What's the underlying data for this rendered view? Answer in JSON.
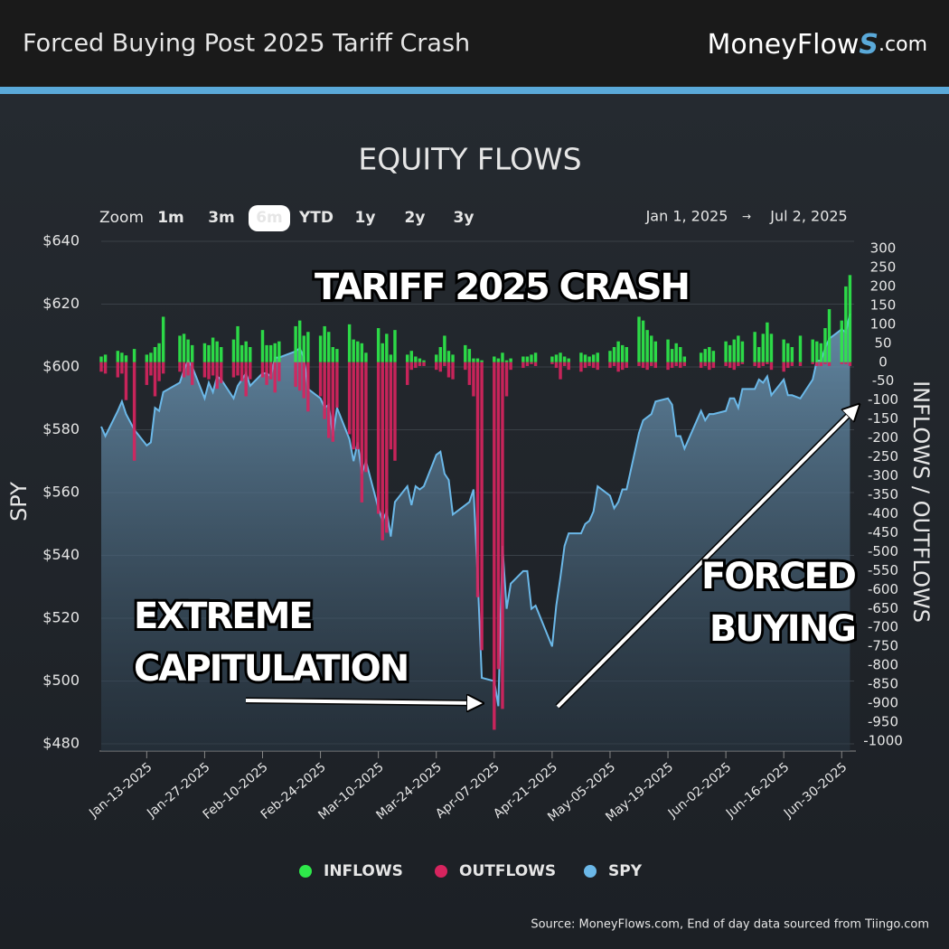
{
  "header": {
    "title": "Forced Buying Post 2025 Tariff Crash",
    "logo": [
      "MoneyFlow",
      "S",
      ".com"
    ]
  },
  "zoom": {
    "label": "Zoom",
    "buttons": [
      "1m",
      "3m",
      "6m",
      "YTD",
      "1y",
      "2y",
      "3y"
    ],
    "selected": 2
  },
  "range": {
    "from": "Jan 1, 2025",
    "to": "Jul 2, 2025"
  },
  "source": "Source: MoneyFlows.com, End of day data sourced from Tiingo.com",
  "chart_data": {
    "type": "bar",
    "title": "EQUITY FLOWS",
    "y_label": "SPY",
    "y2_label": "INFLOWS / OUTFLOWS",
    "annotations": [
      {
        "lines": [
          "TARIFF 2025 CRASH"
        ]
      },
      {
        "lines": [
          "EXTREME",
          "CAPITULATION"
        ]
      },
      {
        "lines": [
          "FORCED",
          "BUYING"
        ]
      }
    ],
    "x": [
      "2025-01-02",
      "2025-01-03",
      "2025-01-06",
      "2025-01-07",
      "2025-01-08",
      "2025-01-10",
      "2025-01-13",
      "2025-01-14",
      "2025-01-15",
      "2025-01-16",
      "2025-01-17",
      "2025-01-21",
      "2025-01-22",
      "2025-01-23",
      "2025-01-24",
      "2025-01-27",
      "2025-01-28",
      "2025-01-29",
      "2025-01-30",
      "2025-01-31",
      "2025-02-03",
      "2025-02-04",
      "2025-02-05",
      "2025-02-06",
      "2025-02-07",
      "2025-02-10",
      "2025-02-11",
      "2025-02-12",
      "2025-02-13",
      "2025-02-14",
      "2025-02-18",
      "2025-02-19",
      "2025-02-20",
      "2025-02-21",
      "2025-02-24",
      "2025-02-25",
      "2025-02-26",
      "2025-02-27",
      "2025-02-28",
      "2025-03-03",
      "2025-03-04",
      "2025-03-05",
      "2025-03-06",
      "2025-03-07",
      "2025-03-10",
      "2025-03-11",
      "2025-03-12",
      "2025-03-13",
      "2025-03-14",
      "2025-03-17",
      "2025-03-18",
      "2025-03-19",
      "2025-03-20",
      "2025-03-21",
      "2025-03-24",
      "2025-03-25",
      "2025-03-26",
      "2025-03-27",
      "2025-03-28",
      "2025-03-31",
      "2025-04-01",
      "2025-04-02",
      "2025-04-03",
      "2025-04-04",
      "2025-04-07",
      "2025-04-08",
      "2025-04-09",
      "2025-04-10",
      "2025-04-11",
      "2025-04-14",
      "2025-04-15",
      "2025-04-16",
      "2025-04-17",
      "2025-04-21",
      "2025-04-22",
      "2025-04-23",
      "2025-04-24",
      "2025-04-25",
      "2025-04-28",
      "2025-04-29",
      "2025-04-30",
      "2025-05-01",
      "2025-05-02",
      "2025-05-05",
      "2025-05-06",
      "2025-05-07",
      "2025-05-08",
      "2025-05-09",
      "2025-05-12",
      "2025-05-13",
      "2025-05-14",
      "2025-05-15",
      "2025-05-16",
      "2025-05-19",
      "2025-05-20",
      "2025-05-21",
      "2025-05-22",
      "2025-05-23",
      "2025-05-27",
      "2025-05-28",
      "2025-05-29",
      "2025-05-30",
      "2025-06-02",
      "2025-06-03",
      "2025-06-04",
      "2025-06-05",
      "2025-06-06",
      "2025-06-09",
      "2025-06-10",
      "2025-06-11",
      "2025-06-12",
      "2025-06-13",
      "2025-06-16",
      "2025-06-17",
      "2025-06-18",
      "2025-06-20",
      "2025-06-23",
      "2025-06-24",
      "2025-06-25",
      "2025-06-26",
      "2025-06-27",
      "2025-06-30",
      "2025-07-01",
      "2025-07-02"
    ],
    "series": [
      {
        "name": "INFLOWS",
        "type": "bar",
        "axis": "y2",
        "color": "#2ee84a",
        "values": [
          15,
          20,
          30,
          25,
          18,
          35,
          20,
          25,
          40,
          50,
          120,
          70,
          75,
          60,
          45,
          50,
          45,
          65,
          55,
          40,
          60,
          95,
          45,
          55,
          40,
          85,
          45,
          45,
          50,
          55,
          95,
          110,
          70,
          80,
          70,
          95,
          80,
          40,
          35,
          100,
          60,
          55,
          50,
          25,
          90,
          50,
          75,
          20,
          85,
          20,
          30,
          15,
          10,
          5,
          20,
          40,
          70,
          30,
          20,
          45,
          35,
          10,
          10,
          5,
          15,
          10,
          25,
          5,
          10,
          15,
          15,
          20,
          25,
          15,
          20,
          25,
          15,
          10,
          25,
          20,
          15,
          20,
          25,
          30,
          40,
          55,
          45,
          40,
          120,
          110,
          85,
          70,
          55,
          60,
          35,
          50,
          40,
          15,
          25,
          35,
          40,
          30,
          55,
          45,
          60,
          70,
          55,
          80,
          40,
          75,
          105,
          75,
          60,
          50,
          40,
          70,
          60,
          55,
          50,
          90,
          140,
          110,
          200,
          230
        ]
      },
      {
        "name": "OUTFLOWS",
        "type": "bar",
        "axis": "y2",
        "color": "#d6245e",
        "values": [
          -25,
          -30,
          -40,
          -30,
          -100,
          -260,
          -60,
          -35,
          -90,
          -50,
          -30,
          -25,
          -40,
          -35,
          -60,
          -40,
          -45,
          -35,
          -70,
          -55,
          -40,
          -35,
          -50,
          -90,
          -45,
          -40,
          -60,
          -45,
          -80,
          -50,
          -65,
          -75,
          -95,
          -130,
          -90,
          -150,
          -200,
          -210,
          -120,
          -190,
          -230,
          -230,
          -370,
          -290,
          -400,
          -470,
          -450,
          -230,
          -260,
          -60,
          -20,
          -15,
          -10,
          -10,
          -20,
          -25,
          -10,
          -40,
          -45,
          -20,
          -60,
          -90,
          -620,
          -760,
          -970,
          -810,
          -915,
          -90,
          -20,
          -15,
          -10,
          -5,
          -10,
          -5,
          -15,
          -45,
          -10,
          -20,
          -25,
          -15,
          -10,
          -15,
          -20,
          -15,
          -10,
          -25,
          -20,
          -15,
          -10,
          -15,
          -20,
          -10,
          -15,
          -20,
          -15,
          -10,
          -15,
          -10,
          -15,
          -10,
          -20,
          -15,
          -10,
          -15,
          -20,
          -10,
          -5,
          -10,
          -15,
          -10,
          -5,
          -20,
          -25,
          -15,
          -10,
          -10,
          -5,
          -10,
          -10,
          -5,
          -10,
          -5,
          -5,
          -10
        ]
      },
      {
        "name": "SPY",
        "type": "area",
        "color": "#6bb8e8",
        "values": [
          581,
          578,
          586,
          589,
          585,
          580,
          575,
          576,
          587,
          586,
          592,
          595,
          599,
          602,
          600,
          590,
          595,
          592,
          597,
          596,
          590,
          594,
          596,
          598,
          594,
          598,
          598,
          597,
          603,
          603,
          605,
          606,
          603,
          593,
          590,
          587,
          588,
          578,
          587,
          577,
          570,
          576,
          566,
          570,
          555,
          551,
          554,
          546,
          557,
          562,
          556,
          562,
          561,
          562,
          572,
          573,
          566,
          564,
          553,
          556,
          557,
          561,
          533,
          501,
          500,
          492,
          543,
          523,
          531,
          535,
          535,
          523,
          524,
          511,
          524,
          533,
          543,
          547,
          547,
          550,
          551,
          554,
          562,
          559,
          555,
          557,
          561,
          561,
          579,
          583,
          584,
          585,
          589,
          590,
          588,
          578,
          578,
          574,
          586,
          583,
          585,
          585,
          586,
          590,
          590,
          587,
          593,
          593,
          596,
          595,
          597,
          591,
          596,
          591,
          591,
          590,
          596,
          602,
          602,
          606,
          609,
          612,
          611,
          617
        ]
      }
    ],
    "xlim": [
      "2025-01-02",
      "2025-07-03"
    ],
    "xticks": [
      {
        "value": "2025-01-13",
        "label": "Jan-13-2025"
      },
      {
        "value": "2025-01-27",
        "label": "Jan-27-2025"
      },
      {
        "value": "2025-02-10",
        "label": "Feb-10-2025"
      },
      {
        "value": "2025-02-24",
        "label": "Feb-24-2025"
      },
      {
        "value": "2025-03-10",
        "label": "Mar-10-2025"
      },
      {
        "value": "2025-03-24",
        "label": "Mar-24-2025"
      },
      {
        "value": "2025-04-07",
        "label": "Apr-07-2025"
      },
      {
        "value": "2025-04-21",
        "label": "Apr-21-2025"
      },
      {
        "value": "2025-05-05",
        "label": "May-05-2025"
      },
      {
        "value": "2025-05-19",
        "label": "May-19-2025"
      },
      {
        "value": "2025-06-02",
        "label": "Jun-02-2025"
      },
      {
        "value": "2025-06-16",
        "label": "Jun-16-2025"
      },
      {
        "value": "2025-06-30",
        "label": "Jun-30-2025"
      }
    ],
    "ylim": [
      480,
      640
    ],
    "yticks": [
      {
        "value": 480,
        "label": "$480"
      },
      {
        "value": 500,
        "label": "$500"
      },
      {
        "value": 520,
        "label": "$520"
      },
      {
        "value": 540,
        "label": "$540"
      },
      {
        "value": 560,
        "label": "$560"
      },
      {
        "value": 580,
        "label": "$580"
      },
      {
        "value": 600,
        "label": "$600"
      },
      {
        "value": 620,
        "label": "$620"
      },
      {
        "value": 640,
        "label": "$640"
      }
    ],
    "y2lim": [
      -1000,
      300
    ],
    "y2ticks": [
      -1000,
      -950,
      -900,
      -850,
      -800,
      -750,
      -700,
      -650,
      -600,
      -550,
      -500,
      -450,
      -400,
      -350,
      -300,
      -250,
      -200,
      -150,
      -100,
      -50,
      0,
      50,
      100,
      150,
      200,
      250,
      300
    ],
    "grid": true,
    "legend": "bottom"
  }
}
